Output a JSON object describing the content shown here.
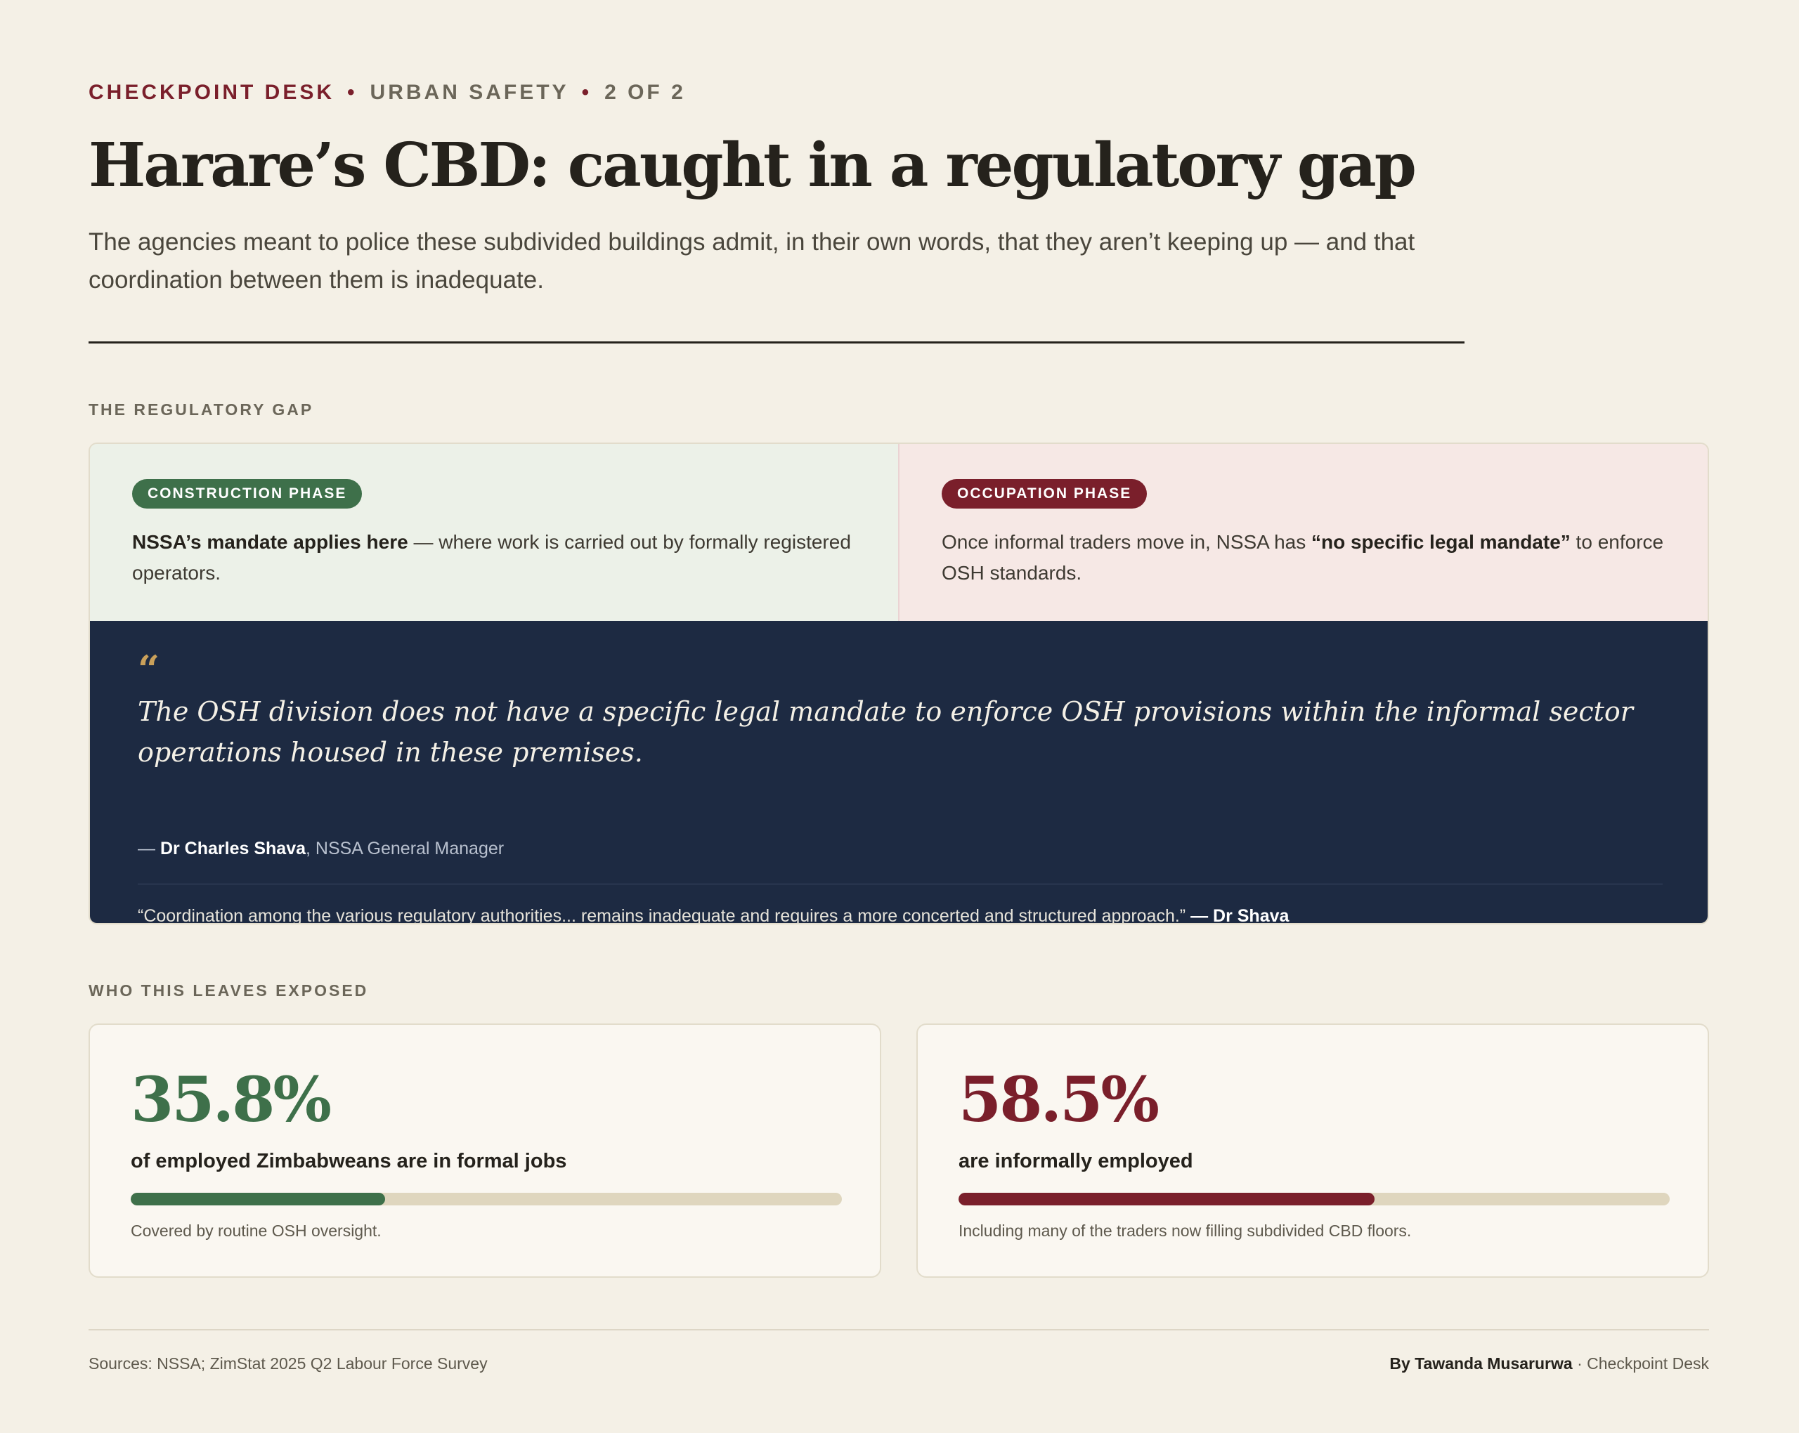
{
  "kicker": {
    "desk": "CHECKPOINT DESK",
    "separator": "•",
    "section": "URBAN SAFETY",
    "part": "2 OF 2"
  },
  "headline": "Harare’s CBD: caught in a regulatory gap",
  "dek": "The agencies meant to police these subdivided buildings admit, in their own words, that they aren’t keeping up — and that coordination between them is inadequate.",
  "sections": {
    "gap": "THE REGULATORY GAP",
    "exposed": "WHO THIS LEAVES EXPOSED"
  },
  "phases": {
    "construction": {
      "tag": "CONSTRUCTION PHASE",
      "strong": "NSSA’s mandate applies here",
      "text": " — where work is carried out by formally registered operators."
    },
    "occupation": {
      "tag": "OCCUPATION PHASE",
      "text_before": "Once informal traders move in, NSSA has ",
      "strong": "“no specific legal mandate”",
      "text_after": " to enforce OSH standards."
    }
  },
  "quote": {
    "mark": "“",
    "text": "The OSH division does not have a specific legal mandate to enforce OSH provisions within the informal sector operations housed in these premises.",
    "attribution_dash": "— ",
    "attribution_name": "Dr Charles Shava",
    "attribution_role": ", NSSA General Manager",
    "secondary_text": "“Coordination among the various regulatory authorities... remains inadequate and requires a more concerted and structured approach.”",
    "secondary_attr": " — Dr Shava"
  },
  "stats": {
    "formal": {
      "value": "35.8%",
      "label": "of employed Zimbabweans are in formal jobs",
      "share": 0.358,
      "note": "Covered by routine OSH oversight.",
      "color": "#3e704a"
    },
    "informal": {
      "value": "58.5%",
      "label": "are informally employed",
      "share": 0.585,
      "note": "Including many of the traders now filling subdivided CBD floors.",
      "color": "#7a1f2b"
    }
  },
  "footer": {
    "sources": "Sources: NSSA; ZimStat 2025 Q2 Labour Force Survey",
    "byline_name": "By Tawanda Musarurwa",
    "byline_desk": " · Checkpoint Desk"
  },
  "colors": {
    "background": "#f4f0e6",
    "accent_red": "#7a1f2b",
    "accent_green": "#3e704a",
    "navy": "#1d2a42",
    "quote_mark": "#c9a05a"
  }
}
